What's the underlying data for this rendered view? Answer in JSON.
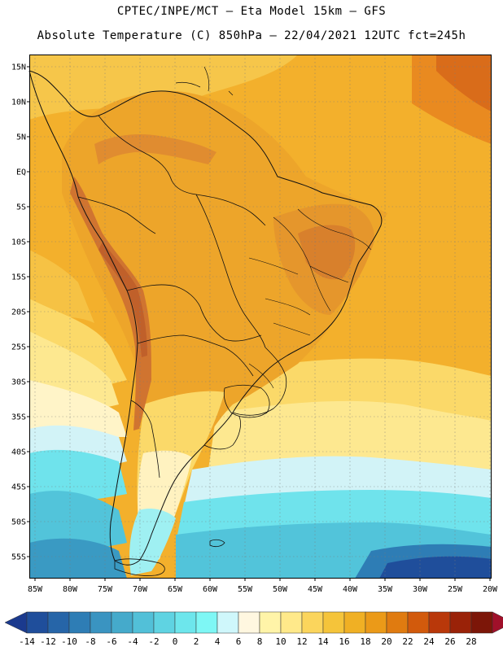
{
  "header": {
    "line1": "CPTEC/INPE/MCT –  Eta Model 15km – GFS",
    "line2": "Absolute Temperature (C) 850hPa – 22/04/2021 12UTC fct=245h"
  },
  "axes": {
    "lat_labels": [
      "15N",
      "10N",
      "5N",
      "EQ",
      "5S",
      "10S",
      "15S",
      "20S",
      "25S",
      "30S",
      "35S",
      "40S",
      "45S",
      "50S",
      "55S"
    ],
    "lon_labels": [
      "85W",
      "80W",
      "75W",
      "70W",
      "65W",
      "60W",
      "55W",
      "50W",
      "45W",
      "40W",
      "35W",
      "30W",
      "25W",
      "20W"
    ]
  },
  "legend": {
    "ticks": [
      "-14",
      "-12",
      "-10",
      "-8",
      "-6",
      "-4",
      "-2",
      "0",
      "2",
      "4",
      "6",
      "8",
      "10",
      "12",
      "14",
      "16",
      "18",
      "20",
      "22",
      "24",
      "26",
      "28"
    ],
    "colors": [
      "#1b3a8e",
      "#1f4e9b",
      "#2665a8",
      "#2e7db5",
      "#3a94c1",
      "#45aacb",
      "#52c0d8",
      "#5fd3e2",
      "#6de6ec",
      "#7ef7f5",
      "#cff7fb",
      "#fff7e0",
      "#fff4a8",
      "#ffe98a",
      "#fbd55c",
      "#f5c43a",
      "#f0b024",
      "#eb9a18",
      "#e07b10",
      "#d25a0c",
      "#b9380a",
      "#9a2208",
      "#7c1608",
      "#a0102a"
    ]
  },
  "map": {
    "region": "South America",
    "colors": {
      "tropical_orange": "#f2a82e",
      "warm_ocean": "#f5bc38",
      "andes_dark": "#d2742c",
      "south_cool_yellow": "#fce788",
      "cold_cyan": "#4fc6dd",
      "cold_blue": "#2a5fa8"
    }
  }
}
